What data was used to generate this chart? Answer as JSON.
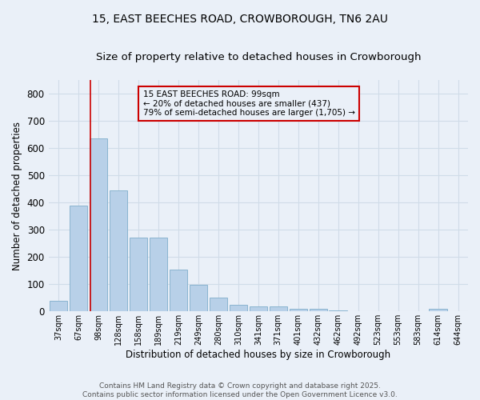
{
  "title_line1": "15, EAST BEECHES ROAD, CROWBOROUGH, TN6 2AU",
  "title_line2": "Size of property relative to detached houses in Crowborough",
  "xlabel": "Distribution of detached houses by size in Crowborough",
  "ylabel": "Number of detached properties",
  "bar_color": "#b8d0e8",
  "bar_edge_color": "#8ab4d0",
  "grid_color": "#d0dce8",
  "background_color": "#eaf0f8",
  "vline_color": "#cc0000",
  "annotation_text": "15 EAST BEECHES ROAD: 99sqm\n← 20% of detached houses are smaller (437)\n79% of semi-detached houses are larger (1,705) →",
  "annotation_box_edge": "#cc0000",
  "categories": [
    "37sqm",
    "67sqm",
    "98sqm",
    "128sqm",
    "158sqm",
    "189sqm",
    "219sqm",
    "249sqm",
    "280sqm",
    "310sqm",
    "341sqm",
    "371sqm",
    "401sqm",
    "432sqm",
    "462sqm",
    "492sqm",
    "523sqm",
    "553sqm",
    "583sqm",
    "614sqm",
    "644sqm"
  ],
  "values": [
    40,
    390,
    635,
    445,
    270,
    270,
    155,
    97,
    52,
    25,
    18,
    18,
    10,
    10,
    5,
    2,
    2,
    2,
    2,
    10,
    2
  ],
  "ylim": [
    0,
    850
  ],
  "yticks": [
    0,
    100,
    200,
    300,
    400,
    500,
    600,
    700,
    800
  ],
  "footnote": "Contains HM Land Registry data © Crown copyright and database right 2025.\nContains public sector information licensed under the Open Government Licence v3.0.",
  "title_fontsize": 10,
  "subtitle_fontsize": 9.5,
  "vline_index": 1.58
}
